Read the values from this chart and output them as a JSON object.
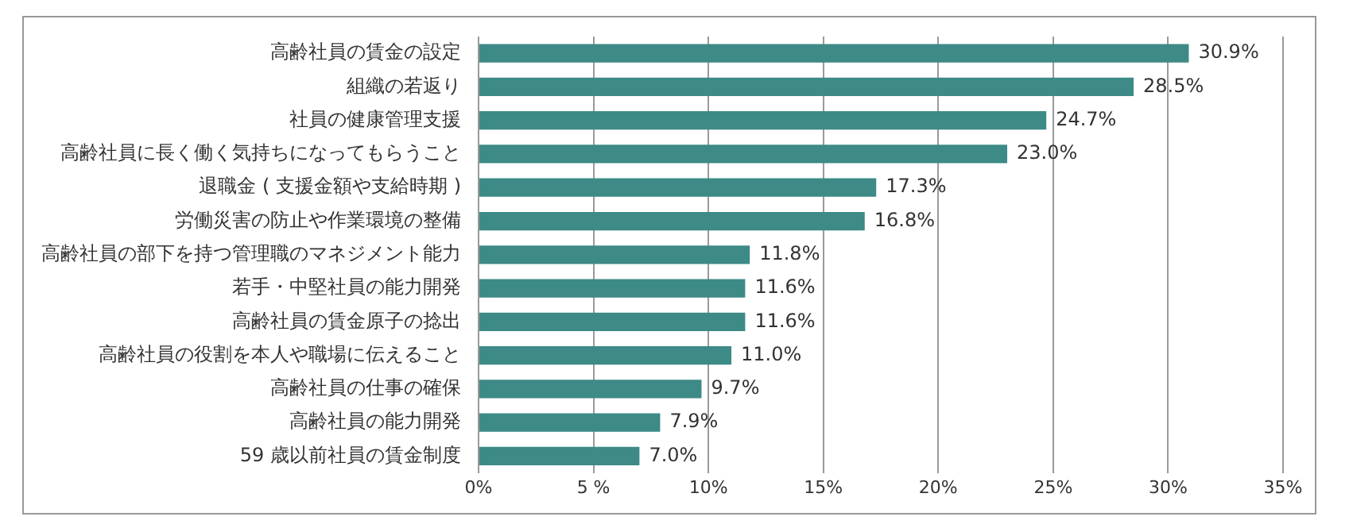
{
  "chart_data": {
    "type": "bar",
    "orientation": "horizontal",
    "categories": [
      "高齢社員の賃金の設定",
      "組織の若返り",
      "社員の健康管理支援",
      "高齢社員に長く働く気持ちになってもらうこと",
      "退職金 ( 支援金額や支給時期 )",
      "労働災害の防止や作業環境の整備",
      "高齢社員の部下を持つ管理職のマネジメント能力",
      "若手・中堅社員の能力開発",
      "高齢社員の賃金原子の捻出",
      "高齢社員の役割を本人や職場に伝えること",
      "高齢社員の仕事の確保",
      "高齢社員の能力開発",
      "59 歳以前社員の賃金制度"
    ],
    "values": [
      30.9,
      28.5,
      24.7,
      23.0,
      17.3,
      16.8,
      11.8,
      11.6,
      11.6,
      11.0,
      9.7,
      7.9,
      7.0
    ],
    "value_labels": [
      "30.9%",
      "28.5%",
      "24.7%",
      "23.0%",
      "17.3%",
      "16.8%",
      "11.8%",
      "11.6%",
      "11.6%",
      "11.0%",
      "9.7%",
      "7.9%",
      "7.0%"
    ],
    "color": "#3d8a87",
    "xlim": [
      0,
      35
    ],
    "xticks": [
      {
        "value": 0,
        "label": "0%"
      },
      {
        "value": 5,
        "label": "5 %"
      },
      {
        "value": 10,
        "label": "10%"
      },
      {
        "value": 15,
        "label": "15%"
      },
      {
        "value": 20,
        "label": "20%"
      },
      {
        "value": 25,
        "label": "25%"
      },
      {
        "value": 30,
        "label": "30%"
      },
      {
        "value": 35,
        "label": "35%"
      }
    ],
    "grid": "x",
    "legend": false
  }
}
